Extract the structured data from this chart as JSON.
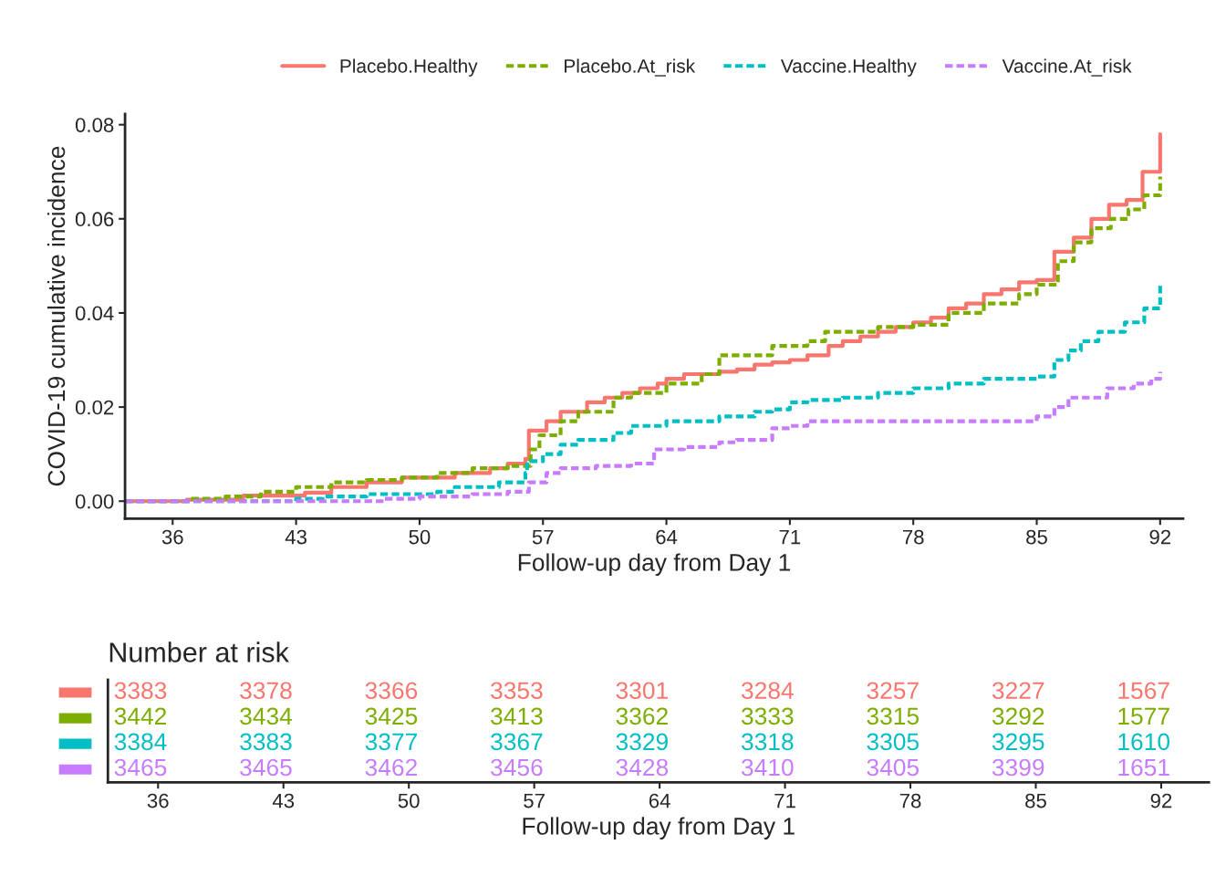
{
  "chart_data": [
    {
      "type": "step",
      "xlabel": "Follow-up day from Day 1",
      "ylabel": "COVID-19 cumulative incidence",
      "xlim": [
        33.3,
        93.3
      ],
      "ylim": [
        -0.0037,
        0.0823
      ],
      "xticks": [
        36,
        43,
        50,
        57,
        64,
        71,
        78,
        85,
        92
      ],
      "yticks": [
        {
          "value": 0,
          "label": "0.00"
        },
        {
          "value": 0.02,
          "label": "0.02"
        },
        {
          "value": 0.04,
          "label": "0.04"
        },
        {
          "value": 0.06,
          "label": "0.06"
        },
        {
          "value": 0.08,
          "label": "0.08"
        }
      ],
      "grid": false,
      "legend": "top",
      "marker": "none",
      "series": [
        {
          "name": "Placebo.Healthy",
          "color": "#f8766d",
          "line_style": "solid",
          "x": [
            33.3,
            36.8,
            40,
            43.5,
            45,
            47,
            49,
            52,
            54,
            55,
            56,
            56.2,
            57.2,
            58,
            59.5,
            60.5,
            61.5,
            62.5,
            63.5,
            64,
            65,
            67,
            68,
            69,
            70,
            71,
            72,
            73.2,
            74,
            75,
            76,
            77,
            78,
            79,
            80,
            81,
            82,
            83,
            84,
            85,
            86,
            87.1,
            88.1,
            89.1,
            90.1,
            91,
            92
          ],
          "values": [
            0,
            0.0003,
            0.0012,
            0.0018,
            0.003,
            0.004,
            0.005,
            0.006,
            0.007,
            0.008,
            0.009,
            0.015,
            0.017,
            0.019,
            0.021,
            0.022,
            0.023,
            0.024,
            0.025,
            0.026,
            0.027,
            0.0275,
            0.028,
            0.029,
            0.0295,
            0.03,
            0.031,
            0.033,
            0.034,
            0.035,
            0.036,
            0.037,
            0.038,
            0.039,
            0.041,
            0.042,
            0.044,
            0.045,
            0.0465,
            0.047,
            0.053,
            0.056,
            0.06,
            0.063,
            0.064,
            0.07,
            0.078
          ]
        },
        {
          "name": "Placebo.At_risk",
          "color": "#7cae00",
          "line_style": "dashed",
          "x": [
            33.3,
            37,
            39,
            41,
            43,
            45,
            47,
            49,
            51,
            53,
            55,
            56.3,
            56.8,
            58,
            59,
            61,
            62,
            64,
            66,
            67,
            70,
            72,
            73,
            76,
            78,
            80,
            82,
            84,
            85,
            86.2,
            87.1,
            88.1,
            89.2,
            90.2,
            91.1,
            92
          ],
          "values": [
            0,
            0.0005,
            0.001,
            0.002,
            0.003,
            0.004,
            0.0045,
            0.005,
            0.006,
            0.007,
            0.0075,
            0.011,
            0.014,
            0.017,
            0.019,
            0.022,
            0.023,
            0.025,
            0.027,
            0.031,
            0.033,
            0.034,
            0.036,
            0.037,
            0.0375,
            0.04,
            0.042,
            0.044,
            0.046,
            0.051,
            0.055,
            0.058,
            0.06,
            0.062,
            0.065,
            0.069
          ]
        },
        {
          "name": "Vaccine.Healthy",
          "color": "#00bfc4",
          "line_style": "dashed",
          "x": [
            33.3,
            43,
            44.5,
            47,
            51,
            52,
            54.5,
            56,
            56.1,
            57,
            58,
            59,
            61,
            62,
            64,
            67,
            69,
            70,
            71,
            72,
            74,
            76,
            78,
            80,
            82,
            85,
            86,
            86.8,
            87.5,
            88.5,
            90,
            91.1,
            92
          ],
          "values": [
            0,
            0.0005,
            0.001,
            0.0015,
            0.002,
            0.003,
            0.004,
            0.006,
            0.0085,
            0.01,
            0.012,
            0.013,
            0.0145,
            0.016,
            0.017,
            0.018,
            0.019,
            0.0195,
            0.021,
            0.0215,
            0.022,
            0.023,
            0.024,
            0.025,
            0.026,
            0.0265,
            0.03,
            0.032,
            0.034,
            0.036,
            0.038,
            0.041,
            0.046
          ]
        },
        {
          "name": "Vaccine.At_risk",
          "color": "#c77cff",
          "line_style": "dashed",
          "x": [
            33.3,
            48,
            50,
            53,
            55,
            56.2,
            57.2,
            58,
            60,
            62,
            63.3,
            65,
            67,
            68,
            70,
            71,
            72,
            85,
            86,
            86.8,
            89,
            90.5,
            91.5,
            92
          ],
          "values": [
            0,
            0.0005,
            0.001,
            0.0015,
            0.002,
            0.004,
            0.006,
            0.007,
            0.0075,
            0.008,
            0.011,
            0.0115,
            0.0125,
            0.013,
            0.0155,
            0.016,
            0.017,
            0.018,
            0.02,
            0.022,
            0.024,
            0.025,
            0.026,
            0.0275
          ]
        }
      ]
    },
    {
      "type": "heatmap",
      "title": "Number at risk",
      "xlabel": "Follow-up day from Day 1",
      "categories": [
        "36",
        "43",
        "50",
        "57",
        "64",
        "71",
        "78",
        "85",
        "92"
      ],
      "y_categories": [
        null,
        null,
        null,
        null
      ],
      "data_labels": true,
      "colors": [
        "#f8766d",
        "#7cae00",
        "#00bfc4",
        "#c77cff"
      ],
      "cells": [
        [
          3383,
          3378,
          3366,
          3353,
          3301,
          3284,
          3257,
          3227,
          1567
        ],
        [
          3442,
          3434,
          3425,
          3413,
          3362,
          3333,
          3315,
          3292,
          1577
        ],
        [
          3384,
          3383,
          3377,
          3367,
          3329,
          3318,
          3305,
          3295,
          1610
        ],
        [
          3465,
          3465,
          3462,
          3456,
          3428,
          3410,
          3405,
          3399,
          1651
        ]
      ]
    }
  ]
}
